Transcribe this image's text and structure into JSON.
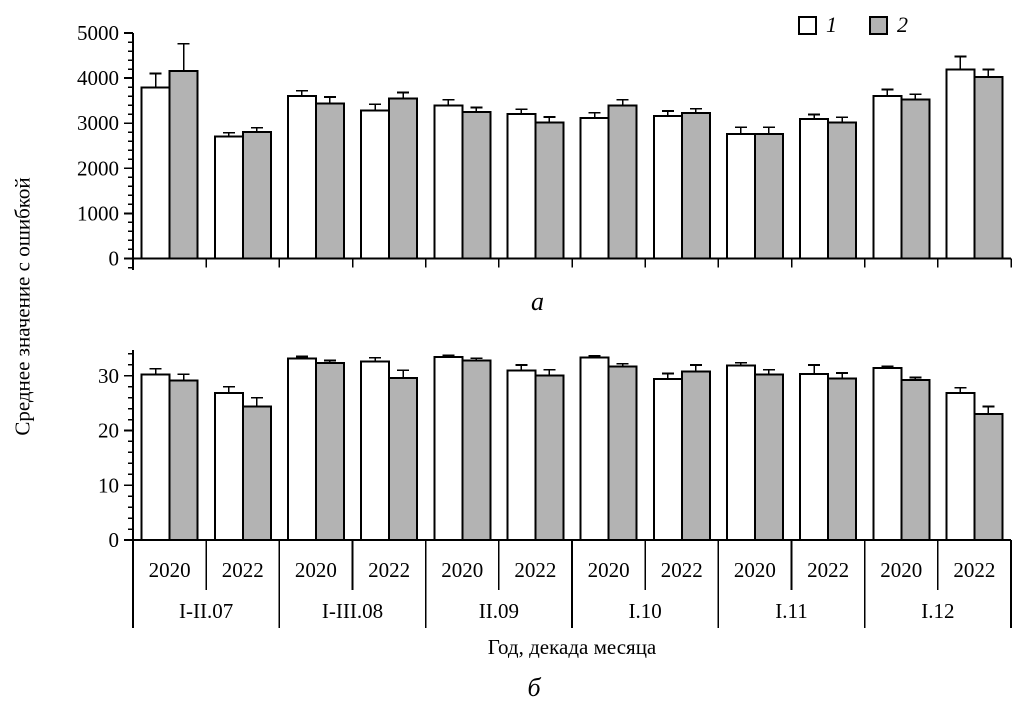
{
  "figure": {
    "ylabel": "Среднее значение с ошибкой",
    "xlabel": "Год, декада месяца",
    "panel_a_label": "а",
    "panel_b_label": "б"
  },
  "legend": {
    "items": [
      {
        "label": "1",
        "color": "#ffffff"
      },
      {
        "label": "2",
        "color": "#b3b3b3"
      }
    ]
  },
  "colors": {
    "axis": "#000000",
    "bar_border": "#000000",
    "series1_fill": "#ffffff",
    "series2_fill": "#b3b3b3"
  },
  "chart_data": [
    {
      "type": "bar",
      "panel": "а",
      "title": "",
      "xlabel": "Год, декада месяца",
      "ylabel": "Среднее значение с ошибкой",
      "ylim": [
        0,
        5000
      ],
      "yticks": [
        0,
        1000,
        2000,
        3000,
        4000,
        5000
      ],
      "minor_tick_step": 200,
      "grid": false,
      "legend_position": "top-right",
      "categories_level1": [
        "I-II.07",
        "I-III.08",
        "II.09",
        "I.10",
        "I.11",
        "I.12"
      ],
      "categories_level2": [
        "2020",
        "2022"
      ],
      "series": [
        {
          "name": "1",
          "fill": "#ffffff",
          "values": [
            3790,
            2700,
            3600,
            3280,
            3390,
            3200,
            3110,
            3160,
            2760,
            3090,
            3600,
            4190
          ],
          "errors": [
            310,
            90,
            120,
            140,
            130,
            110,
            120,
            110,
            150,
            100,
            150,
            290
          ]
        },
        {
          "name": "2",
          "fill": "#b3b3b3",
          "values": [
            4160,
            2800,
            3440,
            3550,
            3250,
            3010,
            3390,
            3230,
            2760,
            3020,
            3530,
            4020
          ],
          "errors": [
            600,
            100,
            140,
            130,
            100,
            130,
            130,
            90,
            150,
            110,
            110,
            170
          ]
        }
      ]
    },
    {
      "type": "bar",
      "panel": "б",
      "title": "",
      "xlabel": "Год, декада месяца",
      "ylabel": "Среднее значение с ошибкой",
      "ylim": [
        0,
        35
      ],
      "yticks": [
        0,
        10,
        20,
        30
      ],
      "minor_tick_step": 2,
      "grid": false,
      "categories_level1": [
        "I-II.07",
        "I-III.08",
        "II.09",
        "I.10",
        "I.11",
        "I.12"
      ],
      "categories_level2": [
        "2020",
        "2022"
      ],
      "series": [
        {
          "name": "1",
          "fill": "#ffffff",
          "values": [
            30.2,
            26.9,
            33.2,
            32.6,
            33.4,
            31.0,
            33.3,
            29.4,
            31.9,
            30.3,
            31.4,
            26.9
          ],
          "errors": [
            1.1,
            1.1,
            0.3,
            0.7,
            0.3,
            1.0,
            0.3,
            1.0,
            0.5,
            1.7,
            0.3,
            0.9
          ]
        },
        {
          "name": "2",
          "fill": "#b3b3b3",
          "values": [
            29.1,
            24.4,
            32.3,
            29.6,
            32.8,
            30.1,
            31.7,
            30.8,
            30.2,
            29.5,
            29.2,
            23.0
          ],
          "errors": [
            1.2,
            1.6,
            0.5,
            1.4,
            0.4,
            1.0,
            0.5,
            1.2,
            0.9,
            1.0,
            0.5,
            1.4
          ]
        }
      ]
    }
  ]
}
